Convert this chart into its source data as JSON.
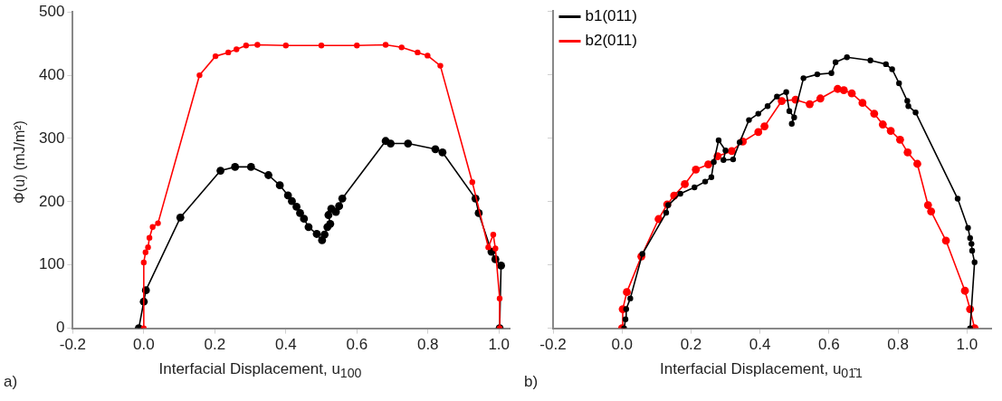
{
  "chart_data": [
    {
      "type": "line",
      "xlabel": "Interfacial Displacement, u$_{100}$",
      "ylabel": "Φ(u) (mJ/m²)",
      "annotations": [
        "a)"
      ],
      "xlim": [
        -0.2,
        1.03
      ],
      "ylim": [
        0,
        500
      ],
      "xticks": [
        {
          "value": -0.2,
          "label": "-0.2"
        },
        {
          "value": 0,
          "label": "0.0"
        },
        {
          "value": 0.2,
          "label": "0.2"
        },
        {
          "value": 0.4,
          "label": "0.4"
        },
        {
          "value": 0.6,
          "label": "0.6"
        },
        {
          "value": 0.8,
          "label": "0.8"
        },
        {
          "value": 1,
          "label": "1.0"
        }
      ],
      "yticks": [
        0,
        100,
        200,
        300,
        400,
        500
      ],
      "grid": false,
      "legend": false,
      "marker": "circle",
      "line_style": "solid",
      "series": [
        {
          "color": "#ff0000",
          "x": [
            0.0,
            0.0,
            0.005,
            0.012,
            0.016,
            0.025,
            0.04,
            0.157,
            0.202,
            0.238,
            0.261,
            0.288,
            0.32,
            0.4,
            0.5,
            0.6,
            0.681,
            0.726,
            0.771,
            0.799,
            0.835,
            0.925,
            0.97,
            0.984,
            0.99,
            1.002,
            1.002
          ],
          "values": [
            0,
            104,
            120,
            128,
            143,
            160,
            166,
            400,
            430,
            436,
            441,
            447,
            448,
            447,
            447,
            447,
            448,
            444,
            436,
            431,
            415,
            231,
            128,
            148,
            126,
            47,
            0
          ]
        },
        {
          "color": "#000000",
          "x": [
            -0.014,
            0.0,
            0.006,
            0.103,
            0.216,
            0.257,
            0.302,
            0.351,
            0.383,
            0.406,
            0.417,
            0.43,
            0.44,
            0.451,
            0.464,
            0.487,
            0.502,
            0.509,
            0.517,
            0.525,
            0.52,
            0.528,
            0.541,
            0.55,
            0.559,
            0.681,
            0.695,
            0.744,
            0.821,
            0.841,
            0.934,
            0.943,
            0.979,
            0.99,
            1.006,
            1.002
          ],
          "values": [
            0,
            42,
            60,
            175,
            249,
            255,
            255,
            242,
            226,
            210,
            201,
            192,
            182,
            173,
            160,
            149,
            139,
            148,
            160,
            165,
            179,
            189,
            184,
            193,
            205,
            296,
            292,
            292,
            283,
            278,
            205,
            182,
            121,
            109,
            99,
            0
          ]
        }
      ]
    },
    {
      "type": "line",
      "xlabel": "Interfacial Displacement, u$_{01̄1}$",
      "annotations": [
        "b)"
      ],
      "xlim": [
        -0.2,
        1.07
      ],
      "ylim": [
        0,
        500
      ],
      "tick_labels": "x",
      "xticks": [
        {
          "value": -0.2,
          "label": "-0.2"
        },
        {
          "value": 0,
          "label": "0.0"
        },
        {
          "value": 0.2,
          "label": "0.2"
        },
        {
          "value": 0.4,
          "label": "0.4"
        },
        {
          "value": 0.6,
          "label": "0.6"
        },
        {
          "value": 0.8,
          "label": "0.8"
        },
        {
          "value": 1,
          "label": "1.0"
        }
      ],
      "yticks": [
        0,
        100,
        200,
        300,
        400,
        500
      ],
      "grid": false,
      "legend": "top left",
      "marker": "circle",
      "line_style": "solid",
      "series": [
        {
          "name": "b1(011)",
          "color": "#000000",
          "x": [
            0.006,
            0.01,
            0.012,
            0.024,
            0.059,
            0.128,
            0.134,
            0.169,
            0.21,
            0.241,
            0.259,
            0.266,
            0.28,
            0.3,
            0.294,
            0.322,
            0.341,
            0.368,
            0.395,
            0.422,
            0.449,
            0.476,
            0.485,
            0.499,
            0.492,
            0.526,
            0.566,
            0.607,
            0.619,
            0.652,
            0.72,
            0.765,
            0.783,
            0.803,
            0.827,
            0.83,
            0.851,
            0.973,
            1.003,
            1.009,
            1.013,
            1.015,
            1.022,
            1.009
          ],
          "values": [
            0,
            14,
            30,
            47,
            117,
            182,
            194,
            212,
            222,
            231,
            238,
            262,
            296,
            280,
            265,
            266,
            293,
            328,
            338,
            350,
            365,
            372,
            342,
            332,
            322,
            394,
            400,
            402,
            419,
            427,
            422,
            416,
            408,
            386,
            358,
            350,
            340,
            204,
            158,
            142,
            133,
            122,
            104,
            0
          ]
        },
        {
          "name": "b2(011)",
          "color": "#ff0000",
          "x": [
            0.0,
            0.002,
            0.014,
            0.056,
            0.106,
            0.131,
            0.151,
            0.182,
            0.214,
            0.25,
            0.277,
            0.318,
            0.35,
            0.395,
            0.413,
            0.463,
            0.503,
            0.544,
            0.575,
            0.625,
            0.643,
            0.666,
            0.697,
            0.731,
            0.756,
            0.779,
            0.806,
            0.828,
            0.856,
            0.887,
            0.896,
            0.939,
            0.994,
            1.009,
            1.022
          ],
          "values": [
            0,
            30,
            57,
            113,
            172,
            195,
            209,
            227,
            250,
            258,
            271,
            279,
            294,
            309,
            318,
            358,
            360,
            353,
            362,
            377,
            375,
            370,
            355,
            338,
            321,
            311,
            297,
            277,
            259,
            194,
            184,
            138,
            59,
            30,
            0
          ]
        }
      ]
    }
  ]
}
